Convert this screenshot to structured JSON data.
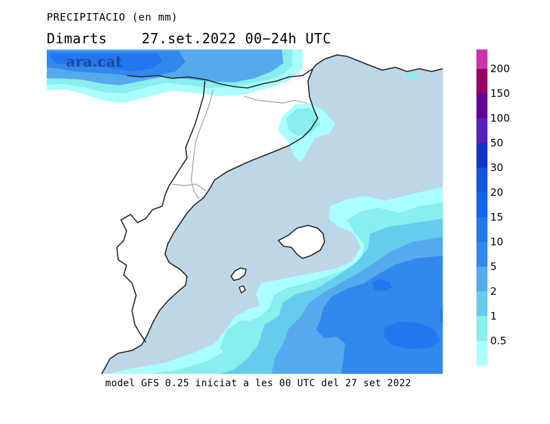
{
  "title": "PRECIPITACIO (en mm)",
  "subtitle": "Dimarts    27.set.2022 00−24h UTC",
  "footer": "model GFS 0.25 iniciat a les 00 UTC del 27 set 2022",
  "watermark": "ara.cat",
  "colors": {
    "sea": "#bdd7e7",
    "land": "#ffffff",
    "coast": "#222222",
    "border": "#aaaaaa"
  },
  "legend": {
    "swatches": [
      "#cc33aa",
      "#990066",
      "#660099",
      "#5522bb",
      "#1133cc",
      "#1155dd",
      "#1166ee",
      "#2277ee",
      "#3388ee",
      "#55aaee",
      "#66ccee",
      "#88eeee",
      "#aaffff"
    ],
    "labels": [
      "200",
      "150",
      "100",
      "50",
      "30",
      "20",
      "15",
      "10",
      "5",
      "2",
      "1",
      "0.5"
    ]
  }
}
